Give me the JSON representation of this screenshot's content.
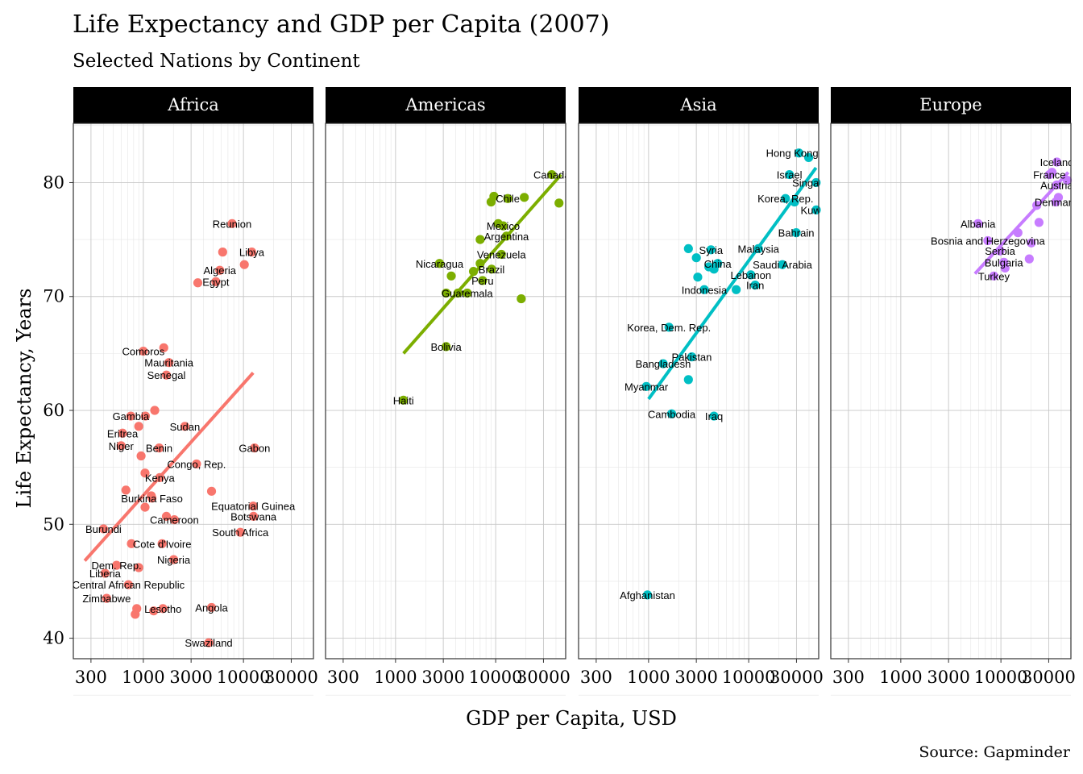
{
  "chart_data": {
    "type": "scatter",
    "title": "Life Expectancy and GDP per Capita (2007)",
    "subtitle": "Selected Nations by Continent",
    "xlabel": "GDP per Capita, USD",
    "ylabel": "Life Expectancy, Years",
    "caption": "Source: Gapminder",
    "x_scale": "log10",
    "x_ticks": [
      300,
      1000,
      3000,
      10000,
      30000
    ],
    "x_tick_labels": [
      "300",
      "1000",
      "3000",
      "10000",
      "30000"
    ],
    "xlim": [
      200,
      50000
    ],
    "y_ticks": [
      40,
      50,
      60,
      70,
      80
    ],
    "y_tick_labels": [
      "40",
      "50",
      "60",
      "70",
      "80"
    ],
    "ylim": [
      38.2,
      85.2
    ],
    "grid": true,
    "legend": "none",
    "panels": [
      {
        "name": "Africa",
        "color": "#F8766D",
        "fit_line": {
          "x": [
            260,
            12500
          ],
          "y": [
            46.8,
            63.3
          ]
        },
        "points": [
          {
            "x": 7700,
            "y": 76.4,
            "label": "Reunion"
          },
          {
            "x": 6200,
            "y": 73.9,
            "label": ""
          },
          {
            "x": 12100,
            "y": 73.9,
            "label": "Libya"
          },
          {
            "x": 5800,
            "y": 72.3,
            "label": "Algeria"
          },
          {
            "x": 10200,
            "y": 72.8,
            "label": ""
          },
          {
            "x": 3500,
            "y": 71.2,
            "label": ""
          },
          {
            "x": 5300,
            "y": 71.3,
            "label": "Egypt"
          },
          {
            "x": 1000,
            "y": 65.2,
            "label": "Comoros"
          },
          {
            "x": 1600,
            "y": 65.5,
            "label": ""
          },
          {
            "x": 1800,
            "y": 64.2,
            "label": "Mauritania"
          },
          {
            "x": 1700,
            "y": 63.1,
            "label": "Senegal"
          },
          {
            "x": 1300,
            "y": 60.0,
            "label": ""
          },
          {
            "x": 750,
            "y": 59.5,
            "label": "Gambia"
          },
          {
            "x": 1050,
            "y": 59.5,
            "label": ""
          },
          {
            "x": 900,
            "y": 58.6,
            "label": ""
          },
          {
            "x": 2600,
            "y": 58.6,
            "label": "Sudan"
          },
          {
            "x": 620,
            "y": 58.0,
            "label": "Eritrea"
          },
          {
            "x": 600,
            "y": 56.9,
            "label": "Niger"
          },
          {
            "x": 1440,
            "y": 56.7,
            "label": "Benin"
          },
          {
            "x": 12900,
            "y": 56.7,
            "label": "Gabon"
          },
          {
            "x": 950,
            "y": 56.0,
            "label": ""
          },
          {
            "x": 3400,
            "y": 55.3,
            "label": "Congo, Rep."
          },
          {
            "x": 1040,
            "y": 54.5,
            "label": ""
          },
          {
            "x": 1460,
            "y": 54.1,
            "label": "Kenya"
          },
          {
            "x": 1200,
            "y": 52.5,
            "label": ""
          },
          {
            "x": 670,
            "y": 53.0,
            "label": ""
          },
          {
            "x": 4800,
            "y": 52.9,
            "label": ""
          },
          {
            "x": 1220,
            "y": 52.3,
            "label": "Burkina Faso"
          },
          {
            "x": 1040,
            "y": 51.5,
            "label": ""
          },
          {
            "x": 12500,
            "y": 51.6,
            "label": "Equatorial Guinea"
          },
          {
            "x": 12600,
            "y": 50.7,
            "label": "Botswana"
          },
          {
            "x": 1700,
            "y": 50.7,
            "label": ""
          },
          {
            "x": 2040,
            "y": 50.4,
            "label": "Cameroon"
          },
          {
            "x": 400,
            "y": 49.6,
            "label": "Burundi"
          },
          {
            "x": 9300,
            "y": 49.3,
            "label": "South Africa"
          },
          {
            "x": 760,
            "y": 48.3,
            "label": ""
          },
          {
            "x": 1540,
            "y": 48.3,
            "label": "Cote d'Ivoire"
          },
          {
            "x": 2010,
            "y": 46.9,
            "label": "Nigeria"
          },
          {
            "x": 900,
            "y": 46.2,
            "label": ""
          },
          {
            "x": 540,
            "y": 46.4,
            "label": "Dem. Rep."
          },
          {
            "x": 415,
            "y": 45.7,
            "label": "Liberia"
          },
          {
            "x": 710,
            "y": 44.7,
            "label": "Central African Republic"
          },
          {
            "x": 430,
            "y": 43.5,
            "label": "Zimbabwe"
          },
          {
            "x": 860,
            "y": 42.6,
            "label": ""
          },
          {
            "x": 1270,
            "y": 42.4,
            "label": ""
          },
          {
            "x": 1570,
            "y": 42.6,
            "label": "Lesotho"
          },
          {
            "x": 4800,
            "y": 42.7,
            "label": "Angola"
          },
          {
            "x": 830,
            "y": 42.1,
            "label": ""
          },
          {
            "x": 4500,
            "y": 39.6,
            "label": "Swaziland"
          }
        ]
      },
      {
        "name": "Americas",
        "color": "#7CAE00",
        "fit_line": {
          "x": [
            1200,
            45000
          ],
          "y": [
            65.0,
            80.7
          ]
        },
        "points": [
          {
            "x": 36300,
            "y": 80.7,
            "label": "Canada"
          },
          {
            "x": 42900,
            "y": 78.2,
            "label": ""
          },
          {
            "x": 9600,
            "y": 78.8,
            "label": ""
          },
          {
            "x": 9000,
            "y": 78.3,
            "label": ""
          },
          {
            "x": 13200,
            "y": 78.6,
            "label": "Chile"
          },
          {
            "x": 19300,
            "y": 78.7,
            "label": ""
          },
          {
            "x": 10600,
            "y": 76.4,
            "label": ""
          },
          {
            "x": 11900,
            "y": 76.2,
            "label": "Mexico"
          },
          {
            "x": 12800,
            "y": 75.3,
            "label": "Argentina"
          },
          {
            "x": 7000,
            "y": 75.0,
            "label": ""
          },
          {
            "x": 11400,
            "y": 73.7,
            "label": "Venezuela"
          },
          {
            "x": 2750,
            "y": 72.9,
            "label": "Nicaragua"
          },
          {
            "x": 7000,
            "y": 72.9,
            "label": ""
          },
          {
            "x": 6000,
            "y": 72.2,
            "label": ""
          },
          {
            "x": 9100,
            "y": 72.4,
            "label": "Brazil"
          },
          {
            "x": 3600,
            "y": 71.8,
            "label": ""
          },
          {
            "x": 7400,
            "y": 71.4,
            "label": "Peru"
          },
          {
            "x": 3200,
            "y": 70.3,
            "label": ""
          },
          {
            "x": 4200,
            "y": 70.3,
            "label": ""
          },
          {
            "x": 5200,
            "y": 70.3,
            "label": "Guatemala"
          },
          {
            "x": 18000,
            "y": 69.8,
            "label": ""
          },
          {
            "x": 3200,
            "y": 65.6,
            "label": "Bolivia"
          },
          {
            "x": 1200,
            "y": 60.9,
            "label": "Haiti"
          }
        ]
      },
      {
        "name": "Asia",
        "color": "#00BFC4",
        "fit_line": {
          "x": [
            1000,
            47000
          ],
          "y": [
            61.0,
            81.3
          ]
        },
        "points": [
          {
            "x": 31700,
            "y": 82.6,
            "label": "Hong Kong, C"
          },
          {
            "x": 39700,
            "y": 82.2,
            "label": ""
          },
          {
            "x": 25500,
            "y": 80.7,
            "label": "Israel"
          },
          {
            "x": 47100,
            "y": 80.0,
            "label": "Singapore"
          },
          {
            "x": 23300,
            "y": 78.6,
            "label": "Korea, Rep."
          },
          {
            "x": 28700,
            "y": 78.3,
            "label": ""
          },
          {
            "x": 47300,
            "y": 77.6,
            "label": "Kuwait"
          },
          {
            "x": 29800,
            "y": 75.6,
            "label": "Bahrain"
          },
          {
            "x": 2500,
            "y": 74.2,
            "label": ""
          },
          {
            "x": 4200,
            "y": 74.1,
            "label": "Syria"
          },
          {
            "x": 12500,
            "y": 74.2,
            "label": "Malaysia"
          },
          {
            "x": 3000,
            "y": 73.4,
            "label": ""
          },
          {
            "x": 4900,
            "y": 72.9,
            "label": "China"
          },
          {
            "x": 4000,
            "y": 72.6,
            "label": ""
          },
          {
            "x": 4500,
            "y": 72.4,
            "label": ""
          },
          {
            "x": 21700,
            "y": 72.8,
            "label": "Saudi Arabia"
          },
          {
            "x": 3100,
            "y": 71.7,
            "label": ""
          },
          {
            "x": 10500,
            "y": 71.9,
            "label": "Lebanon"
          },
          {
            "x": 11600,
            "y": 71.0,
            "label": "Iran"
          },
          {
            "x": 3600,
            "y": 70.6,
            "label": "Indonesia"
          },
          {
            "x": 7500,
            "y": 70.6,
            "label": ""
          },
          {
            "x": 1600,
            "y": 67.3,
            "label": "Korea, Dem. Rep."
          },
          {
            "x": 2700,
            "y": 64.7,
            "label": "Pakistan"
          },
          {
            "x": 1400,
            "y": 64.1,
            "label": "Bangladesh"
          },
          {
            "x": 2500,
            "y": 62.7,
            "label": ""
          },
          {
            "x": 950,
            "y": 62.1,
            "label": "Myanmar"
          },
          {
            "x": 1700,
            "y": 59.7,
            "label": "Cambodia"
          },
          {
            "x": 4500,
            "y": 59.5,
            "label": "Iraq"
          },
          {
            "x": 975,
            "y": 43.8,
            "label": "Afghanistan"
          }
        ]
      },
      {
        "name": "Europe",
        "color": "#C77CFF",
        "fit_line": {
          "x": [
            5500,
            47000
          ],
          "y": [
            72.0,
            80.9
          ]
        },
        "points": [
          {
            "x": 36200,
            "y": 81.8,
            "label": "Iceland"
          },
          {
            "x": 32400,
            "y": 80.9,
            "label": ""
          },
          {
            "x": 30500,
            "y": 80.7,
            "label": "France"
          },
          {
            "x": 46000,
            "y": 80.2,
            "label": ""
          },
          {
            "x": 36100,
            "y": 79.8,
            "label": "Austria"
          },
          {
            "x": 37500,
            "y": 78.7,
            "label": ""
          },
          {
            "x": 35300,
            "y": 78.3,
            "label": "Denmark"
          },
          {
            "x": 22800,
            "y": 78.0,
            "label": ""
          },
          {
            "x": 5900,
            "y": 76.4,
            "label": "Albania"
          },
          {
            "x": 24000,
            "y": 76.5,
            "label": ""
          },
          {
            "x": 14800,
            "y": 75.6,
            "label": ""
          },
          {
            "x": 7400,
            "y": 74.9,
            "label": "Bosnia and Herzegovina"
          },
          {
            "x": 20100,
            "y": 74.7,
            "label": ""
          },
          {
            "x": 9800,
            "y": 74.0,
            "label": "Serbia"
          },
          {
            "x": 19200,
            "y": 73.3,
            "label": ""
          },
          {
            "x": 10700,
            "y": 73.0,
            "label": "Bulgaria"
          },
          {
            "x": 11000,
            "y": 72.5,
            "label": ""
          },
          {
            "x": 8500,
            "y": 71.8,
            "label": "Turkey"
          }
        ]
      }
    ]
  }
}
